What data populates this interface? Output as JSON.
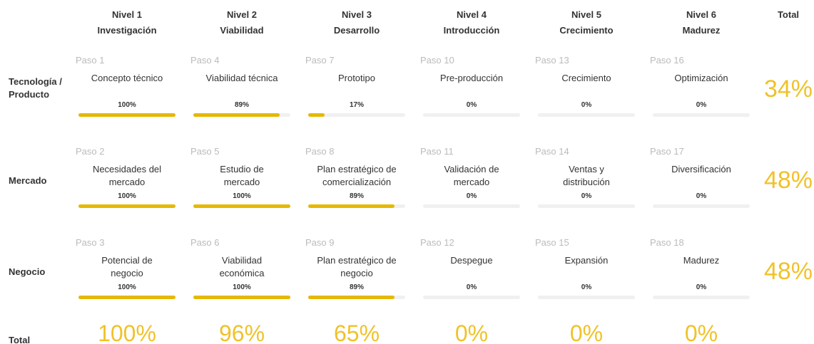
{
  "header": {
    "total": "Total",
    "columns": [
      {
        "level": "Nivel 1",
        "name": "Investigación"
      },
      {
        "level": "Nivel 2",
        "name": "Viabilidad"
      },
      {
        "level": "Nivel 3",
        "name": "Desarrollo"
      },
      {
        "level": "Nivel 4",
        "name": "Introducción"
      },
      {
        "level": "Nivel 5",
        "name": "Crecimiento"
      },
      {
        "level": "Nivel 6",
        "name": "Madurez"
      }
    ]
  },
  "rows": [
    {
      "label": "Tecnología / Producto",
      "total": "34%",
      "cells": [
        {
          "step": "Paso 1",
          "name": [
            "Concepto técnico"
          ],
          "progress": {
            "value": 100,
            "label": "100%"
          }
        },
        {
          "step": "Paso 4",
          "name": [
            "Viabilidad técnica"
          ],
          "progress": {
            "value": 89,
            "label": "89%"
          }
        },
        {
          "step": "Paso 7",
          "name": [
            "Prototipo"
          ],
          "progress": {
            "value": 17,
            "label": "17%"
          }
        },
        {
          "step": "Paso 10",
          "name": [
            "Pre-producción"
          ],
          "progress": {
            "value": 0,
            "label": "0%"
          }
        },
        {
          "step": "Paso 13",
          "name": [
            "Crecimiento"
          ],
          "progress": {
            "value": 0,
            "label": "0%"
          }
        },
        {
          "step": "Paso 16",
          "name": [
            "Optimización"
          ],
          "progress": {
            "value": 0,
            "label": "0%"
          }
        }
      ]
    },
    {
      "label": "Mercado",
      "total": "48%",
      "cells": [
        {
          "step": "Paso 2",
          "name": [
            "Necesidades del",
            "mercado"
          ],
          "progress": {
            "value": 100,
            "label": "100%"
          }
        },
        {
          "step": "Paso 5",
          "name": [
            "Estudio de",
            "mercado"
          ],
          "progress": {
            "value": 100,
            "label": "100%"
          }
        },
        {
          "step": "Paso 8",
          "name": [
            "Plan estratégico de",
            "comercialización"
          ],
          "progress": {
            "value": 89,
            "label": "89%"
          }
        },
        {
          "step": "Paso 11",
          "name": [
            "Validación de",
            "mercado"
          ],
          "progress": {
            "value": 0,
            "label": "0%"
          }
        },
        {
          "step": "Paso 14",
          "name": [
            "Ventas y",
            "distribución"
          ],
          "progress": {
            "value": 0,
            "label": "0%"
          }
        },
        {
          "step": "Paso 17",
          "name": [
            "Diversificación"
          ],
          "progress": {
            "value": 0,
            "label": "0%"
          }
        }
      ]
    },
    {
      "label": "Negocio",
      "total": "48%",
      "cells": [
        {
          "step": "Paso 3",
          "name": [
            "Potencial de",
            "negocio"
          ],
          "progress": {
            "value": 100,
            "label": "100%"
          }
        },
        {
          "step": "Paso 6",
          "name": [
            "Viabilidad",
            "económica"
          ],
          "progress": {
            "value": 100,
            "label": "100%"
          }
        },
        {
          "step": "Paso 9",
          "name": [
            "Plan estratégico de",
            "negocio"
          ],
          "progress": {
            "value": 89,
            "label": "89%"
          }
        },
        {
          "step": "Paso 12",
          "name": [
            "Despegue"
          ],
          "progress": {
            "value": 0,
            "label": "0%"
          }
        },
        {
          "step": "Paso 15",
          "name": [
            "Expansión"
          ],
          "progress": {
            "value": 0,
            "label": "0%"
          }
        },
        {
          "step": "Paso 18",
          "name": [
            "Madurez"
          ],
          "progress": {
            "value": 0,
            "label": "0%"
          }
        }
      ]
    }
  ],
  "total_row": {
    "label": "Total",
    "values": [
      "100%",
      "96%",
      "65%",
      "0%",
      "0%",
      "0%"
    ]
  }
}
